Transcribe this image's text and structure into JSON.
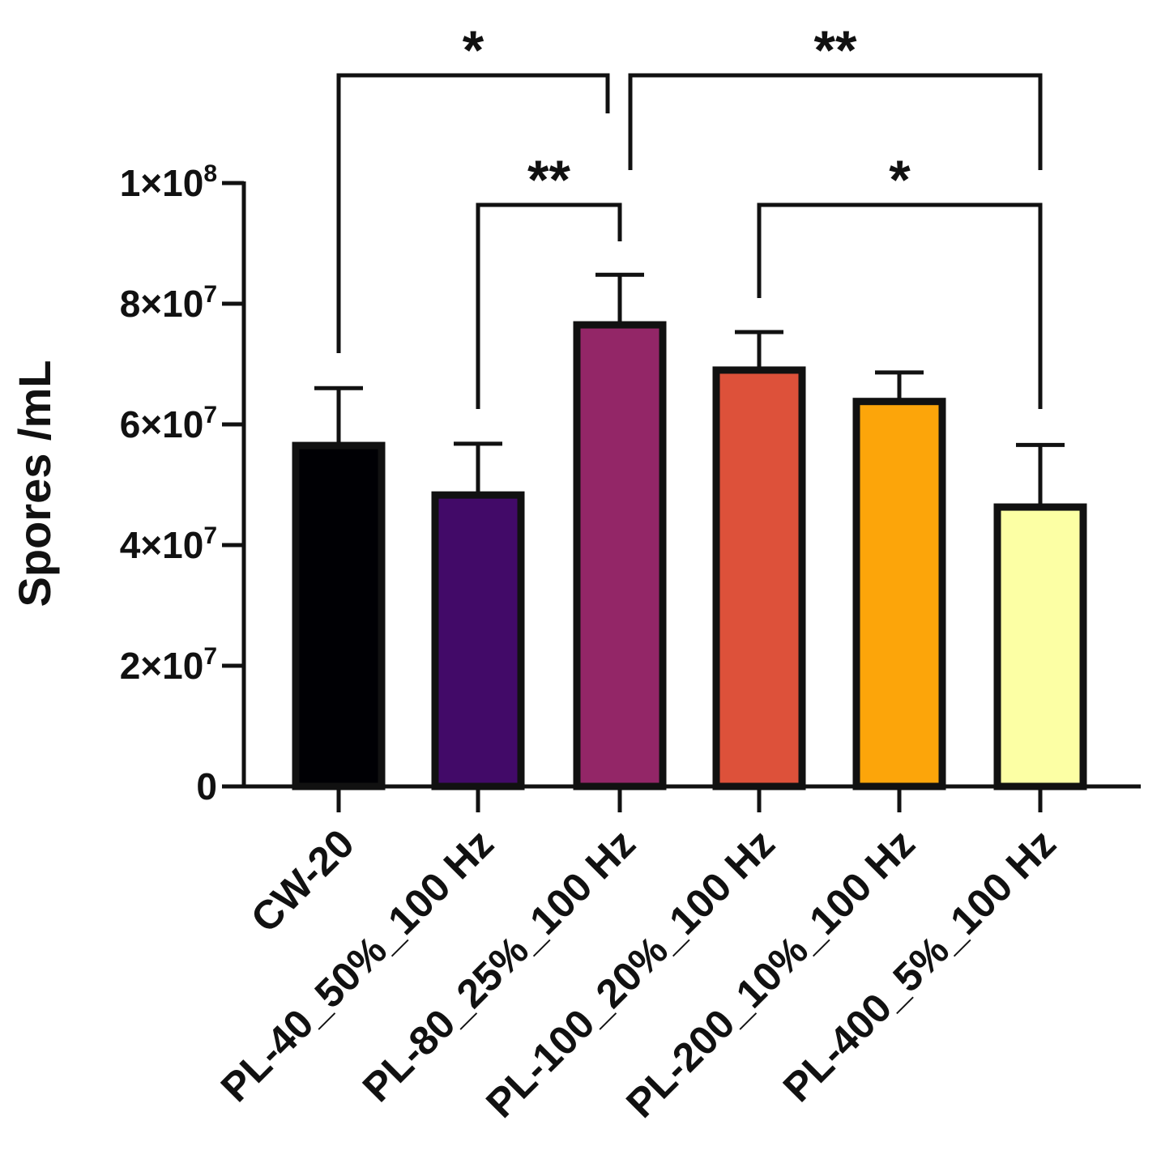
{
  "chart_data": {
    "type": "bar",
    "title": "",
    "xlabel": "",
    "ylabel": "Spores /mL",
    "ylim": [
      0,
      100000000
    ],
    "yticks": [
      {
        "value": 0,
        "mantissa": "0",
        "exponent": ""
      },
      {
        "value": 20000000,
        "mantissa": "2×10",
        "exponent": "7"
      },
      {
        "value": 40000000,
        "mantissa": "4×10",
        "exponent": "7"
      },
      {
        "value": 60000000,
        "mantissa": "6×10",
        "exponent": "7"
      },
      {
        "value": 80000000,
        "mantissa": "8×10",
        "exponent": "7"
      },
      {
        "value": 100000000,
        "mantissa": "1×10",
        "exponent": "8"
      }
    ],
    "categories": [
      "CW-20",
      "PL-40_50%_100 Hz",
      "PL-80_25%_100 Hz",
      "PL-100_20%_100 Hz",
      "PL-200_10%_100 Hz",
      "PL-400_5%_100 Hz"
    ],
    "values": [
      56500000,
      48300000,
      76500000,
      69000000,
      63800000,
      46300000
    ],
    "errors": [
      9500000,
      8500000,
      8300000,
      6300000,
      4800000,
      10300000
    ],
    "colors": [
      "#000004",
      "#420a68",
      "#932667",
      "#dd513a",
      "#fca50a",
      "#fcffa4"
    ],
    "grid": false,
    "legend": "none",
    "significance": [
      {
        "from": 0,
        "to": 2,
        "label": "*"
      },
      {
        "from": 2,
        "to": 5,
        "label": "**"
      },
      {
        "from": 1,
        "to": 2,
        "label": "**"
      },
      {
        "from": 3,
        "to": 5,
        "label": "*"
      }
    ]
  }
}
